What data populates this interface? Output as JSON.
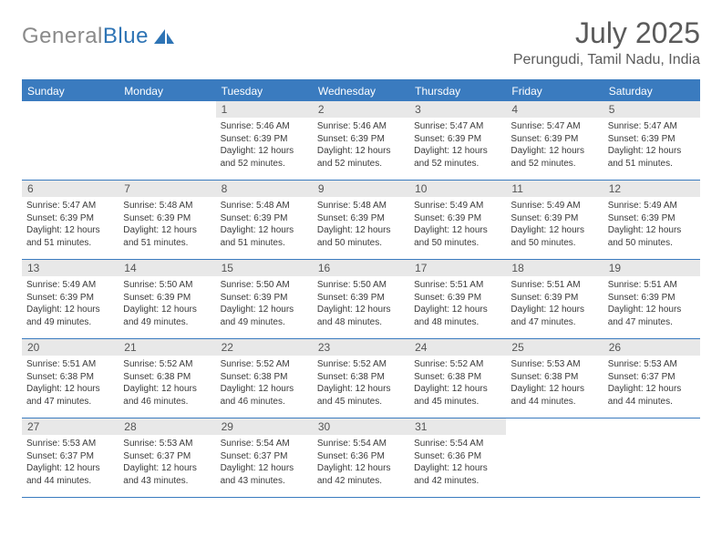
{
  "brand": {
    "name_part1": "General",
    "name_part2": "Blue"
  },
  "title": "July 2025",
  "location": "Perungudi, Tamil Nadu, India",
  "colors": {
    "header_bg": "#3a7bbf",
    "daynum_bg": "#e8e8e8",
    "brand_gray": "#8a8a8a",
    "brand_blue": "#2e74b5",
    "title_color": "#5a5a5a"
  },
  "day_labels": [
    "Sunday",
    "Monday",
    "Tuesday",
    "Wednesday",
    "Thursday",
    "Friday",
    "Saturday"
  ],
  "weeks": [
    [
      {
        "empty": true
      },
      {
        "empty": true
      },
      {
        "num": "1",
        "sunrise": "5:46 AM",
        "sunset": "6:39 PM",
        "daylight": "12 hours and 52 minutes."
      },
      {
        "num": "2",
        "sunrise": "5:46 AM",
        "sunset": "6:39 PM",
        "daylight": "12 hours and 52 minutes."
      },
      {
        "num": "3",
        "sunrise": "5:47 AM",
        "sunset": "6:39 PM",
        "daylight": "12 hours and 52 minutes."
      },
      {
        "num": "4",
        "sunrise": "5:47 AM",
        "sunset": "6:39 PM",
        "daylight": "12 hours and 52 minutes."
      },
      {
        "num": "5",
        "sunrise": "5:47 AM",
        "sunset": "6:39 PM",
        "daylight": "12 hours and 51 minutes."
      }
    ],
    [
      {
        "num": "6",
        "sunrise": "5:47 AM",
        "sunset": "6:39 PM",
        "daylight": "12 hours and 51 minutes."
      },
      {
        "num": "7",
        "sunrise": "5:48 AM",
        "sunset": "6:39 PM",
        "daylight": "12 hours and 51 minutes."
      },
      {
        "num": "8",
        "sunrise": "5:48 AM",
        "sunset": "6:39 PM",
        "daylight": "12 hours and 51 minutes."
      },
      {
        "num": "9",
        "sunrise": "5:48 AM",
        "sunset": "6:39 PM",
        "daylight": "12 hours and 50 minutes."
      },
      {
        "num": "10",
        "sunrise": "5:49 AM",
        "sunset": "6:39 PM",
        "daylight": "12 hours and 50 minutes."
      },
      {
        "num": "11",
        "sunrise": "5:49 AM",
        "sunset": "6:39 PM",
        "daylight": "12 hours and 50 minutes."
      },
      {
        "num": "12",
        "sunrise": "5:49 AM",
        "sunset": "6:39 PM",
        "daylight": "12 hours and 50 minutes."
      }
    ],
    [
      {
        "num": "13",
        "sunrise": "5:49 AM",
        "sunset": "6:39 PM",
        "daylight": "12 hours and 49 minutes."
      },
      {
        "num": "14",
        "sunrise": "5:50 AM",
        "sunset": "6:39 PM",
        "daylight": "12 hours and 49 minutes."
      },
      {
        "num": "15",
        "sunrise": "5:50 AM",
        "sunset": "6:39 PM",
        "daylight": "12 hours and 49 minutes."
      },
      {
        "num": "16",
        "sunrise": "5:50 AM",
        "sunset": "6:39 PM",
        "daylight": "12 hours and 48 minutes."
      },
      {
        "num": "17",
        "sunrise": "5:51 AM",
        "sunset": "6:39 PM",
        "daylight": "12 hours and 48 minutes."
      },
      {
        "num": "18",
        "sunrise": "5:51 AM",
        "sunset": "6:39 PM",
        "daylight": "12 hours and 47 minutes."
      },
      {
        "num": "19",
        "sunrise": "5:51 AM",
        "sunset": "6:39 PM",
        "daylight": "12 hours and 47 minutes."
      }
    ],
    [
      {
        "num": "20",
        "sunrise": "5:51 AM",
        "sunset": "6:38 PM",
        "daylight": "12 hours and 47 minutes."
      },
      {
        "num": "21",
        "sunrise": "5:52 AM",
        "sunset": "6:38 PM",
        "daylight": "12 hours and 46 minutes."
      },
      {
        "num": "22",
        "sunrise": "5:52 AM",
        "sunset": "6:38 PM",
        "daylight": "12 hours and 46 minutes."
      },
      {
        "num": "23",
        "sunrise": "5:52 AM",
        "sunset": "6:38 PM",
        "daylight": "12 hours and 45 minutes."
      },
      {
        "num": "24",
        "sunrise": "5:52 AM",
        "sunset": "6:38 PM",
        "daylight": "12 hours and 45 minutes."
      },
      {
        "num": "25",
        "sunrise": "5:53 AM",
        "sunset": "6:38 PM",
        "daylight": "12 hours and 44 minutes."
      },
      {
        "num": "26",
        "sunrise": "5:53 AM",
        "sunset": "6:37 PM",
        "daylight": "12 hours and 44 minutes."
      }
    ],
    [
      {
        "num": "27",
        "sunrise": "5:53 AM",
        "sunset": "6:37 PM",
        "daylight": "12 hours and 44 minutes."
      },
      {
        "num": "28",
        "sunrise": "5:53 AM",
        "sunset": "6:37 PM",
        "daylight": "12 hours and 43 minutes."
      },
      {
        "num": "29",
        "sunrise": "5:54 AM",
        "sunset": "6:37 PM",
        "daylight": "12 hours and 43 minutes."
      },
      {
        "num": "30",
        "sunrise": "5:54 AM",
        "sunset": "6:36 PM",
        "daylight": "12 hours and 42 minutes."
      },
      {
        "num": "31",
        "sunrise": "5:54 AM",
        "sunset": "6:36 PM",
        "daylight": "12 hours and 42 minutes."
      },
      {
        "empty": true
      },
      {
        "empty": true
      }
    ]
  ],
  "labels": {
    "sunrise_prefix": "Sunrise: ",
    "sunset_prefix": "Sunset: ",
    "daylight_prefix": "Daylight: "
  }
}
